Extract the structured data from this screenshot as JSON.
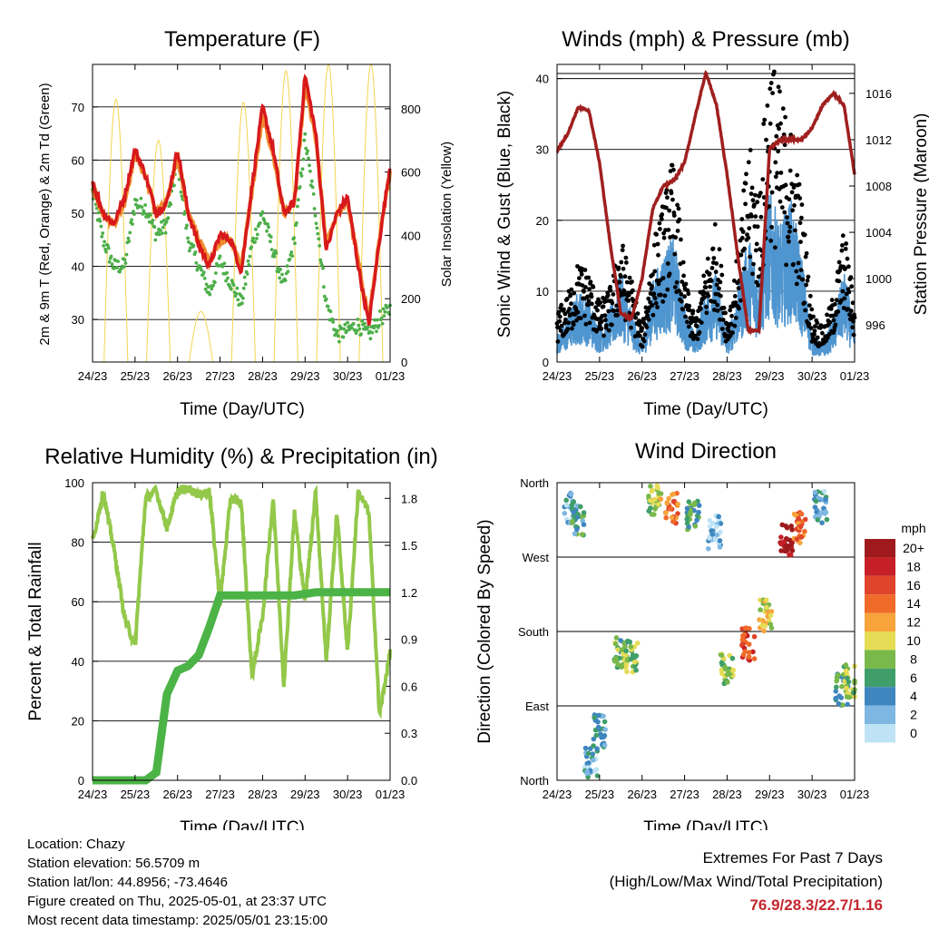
{
  "colors": {
    "red": "#d7191c",
    "orange": "#f08c2e",
    "green": "#4daf4a",
    "yellow": "#f2d44e",
    "black": "#000000",
    "blue": "#4f95cf",
    "maroon": "#a01f1f",
    "rh": "#93c84a",
    "rain": "#4cb347",
    "extremes": "#c4262e"
  },
  "x_ticks": [
    "24/23",
    "25/23",
    "26/23",
    "27/23",
    "28/23",
    "29/23",
    "30/23",
    "01/23"
  ],
  "x_label": "Time (Day/UTC)",
  "temperature": {
    "title": "Temperature (F)",
    "ylabel": "2m & 9m T (Red, Orange) & 2m Td (Green)",
    "y2label": "Solar Insolation (Yellow)",
    "yticks": [
      30,
      40,
      50,
      60,
      70
    ],
    "y2ticks": [
      0,
      200,
      400,
      600,
      800
    ],
    "ylim": [
      22,
      78
    ],
    "y2lim": [
      0,
      940
    ]
  },
  "winds": {
    "title": "Winds (mph) & Pressure (mb)",
    "ylabel": "Sonic Wind & Gust (Blue, Black)",
    "y2label": "Station Pressure (Maroon)",
    "yticks": [
      0,
      10,
      20,
      30,
      40
    ],
    "y2ticks": [
      996,
      1000,
      1004,
      1008,
      1012,
      1016
    ],
    "ylim": [
      0,
      42
    ],
    "y2lim": [
      992.8,
      1018.5
    ]
  },
  "humidity": {
    "title": "Relative Humidity (%) & Precipitation (in)",
    "ylabel": "Percent & Total Rainfall",
    "yticks": [
      0,
      20,
      40,
      60,
      80,
      100
    ],
    "y2ticks": [
      "0.0",
      "0.3",
      "0.6",
      "0.9",
      "1.2",
      "1.5",
      "1.8"
    ],
    "ylim": [
      0,
      100
    ],
    "y2lim": [
      0,
      1.9
    ]
  },
  "direction": {
    "title": "Wind Direction",
    "ylabel": "Direction (Colored By Speed)",
    "yticks": [
      "North",
      "East",
      "South",
      "West",
      "North"
    ],
    "legend_title": "mph",
    "legend": [
      {
        "label": "20+",
        "color": "#9e1a1c"
      },
      {
        "label": "18",
        "color": "#c62026"
      },
      {
        "label": "16",
        "color": "#e0442a"
      },
      {
        "label": "14",
        "color": "#f06a2a"
      },
      {
        "label": "12",
        "color": "#f7a43c"
      },
      {
        "label": "10",
        "color": "#e6dc56"
      },
      {
        "label": "8",
        "color": "#79b84a"
      },
      {
        "label": "6",
        "color": "#3f9e6a"
      },
      {
        "label": "4",
        "color": "#3f86bf"
      },
      {
        "label": "2",
        "color": "#7db7e2"
      },
      {
        "label": "0",
        "color": "#bfe3f5"
      }
    ]
  },
  "chart_data": [
    {
      "type": "line",
      "title": "Temperature (F)",
      "xlabel": "Time (Day/UTC)",
      "ylabel": "2m & 9m T (Red, Orange) & 2m Td (Green)",
      "y2label": "Solar Insolation (Yellow)",
      "x": [
        0,
        0.25,
        0.5,
        0.75,
        1,
        1.25,
        1.5,
        1.75,
        2,
        2.25,
        2.5,
        2.75,
        3,
        3.25,
        3.5,
        3.75,
        4,
        4.25,
        4.5,
        4.75,
        5,
        5.25,
        5.5,
        5.75,
        6,
        6.25,
        6.5,
        6.75,
        7
      ],
      "series": [
        {
          "name": "2m T",
          "values": [
            56,
            50,
            48,
            53,
            62,
            57,
            50,
            52,
            62,
            50,
            44,
            40,
            46,
            45,
            39,
            55,
            70,
            62,
            50,
            52,
            76,
            65,
            43,
            50,
            53,
            40,
            29,
            45,
            59
          ]
        },
        {
          "name": "9m T",
          "values": [
            55,
            50,
            48,
            52,
            61,
            57,
            50,
            52,
            61,
            50,
            45,
            41,
            45,
            45,
            40,
            54,
            68,
            61,
            50,
            52,
            74,
            64,
            44,
            50,
            52,
            41,
            30,
            45,
            58
          ]
        },
        {
          "name": "2m Td",
          "values": [
            54,
            45,
            40,
            40,
            52,
            51,
            46,
            48,
            60,
            45,
            40,
            35,
            41,
            37,
            33,
            44,
            50,
            43,
            36,
            45,
            64,
            50,
            33,
            27,
            28,
            29,
            27,
            30,
            32
          ]
        }
      ],
      "solar_insolation": {
        "peaks_day": [
          0.55,
          1.55,
          2.55,
          3.55,
          4.55,
          5.55,
          6.55
        ],
        "peak_values": [
          830,
          700,
          160,
          820,
          920,
          940,
          940
        ]
      },
      "ylim": [
        22,
        78
      ],
      "y2lim": [
        0,
        940
      ]
    },
    {
      "type": "line",
      "title": "Winds (mph) & Pressure (mb)",
      "xlabel": "Time (Day/UTC)",
      "ylabel": "Sonic Wind & Gust (Blue, Black)",
      "y2label": "Station Pressure (Maroon)",
      "x": [
        0,
        0.25,
        0.5,
        0.75,
        1,
        1.25,
        1.5,
        1.75,
        2,
        2.25,
        2.5,
        2.75,
        3,
        3.25,
        3.5,
        3.75,
        4,
        4.25,
        4.5,
        4.75,
        5,
        5.25,
        5.5,
        5.75,
        6,
        6.25,
        6.5,
        6.75,
        7
      ],
      "series": [
        {
          "name": "Sonic Wind",
          "values": [
            3,
            5,
            8,
            7,
            4,
            6,
            10,
            6,
            2,
            9,
            12,
            14,
            6,
            3,
            8,
            10,
            3,
            8,
            14,
            10,
            19,
            15,
            18,
            12,
            3,
            2,
            5,
            10,
            4
          ]
        },
        {
          "name": "Gust",
          "values": [
            6,
            8,
            12,
            11,
            7,
            9,
            15,
            10,
            4,
            14,
            19,
            25,
            10,
            5,
            12,
            17,
            5,
            13,
            26,
            21,
            38,
            32,
            28,
            20,
            6,
            4,
            8,
            16,
            7
          ]
        },
        {
          "name": "Station Pressure",
          "values": [
            1011,
            1012.5,
            1014.8,
            1014.5,
            1010,
            1003,
            997,
            996.5,
            1000,
            1006,
            1008,
            1008.5,
            1010,
            1014,
            1017.8,
            1015,
            1009,
            1002,
            995.5,
            995.5,
            1011.2,
            1012,
            1012,
            1012,
            1013,
            1015,
            1016,
            1015,
            1009
          ]
        }
      ],
      "ylim": [
        0,
        42
      ],
      "y2lim": [
        992.8,
        1018.5
      ]
    },
    {
      "type": "line",
      "title": "Relative Humidity (%) & Precipitation (in)",
      "xlabel": "Time (Day/UTC)",
      "ylabel": "Percent & Total Rainfall",
      "x": [
        0,
        0.25,
        0.5,
        0.75,
        1,
        1.25,
        1.5,
        1.75,
        2,
        2.25,
        2.5,
        2.75,
        3,
        3.25,
        3.5,
        3.75,
        4,
        4.25,
        4.5,
        4.75,
        5,
        5.25,
        5.5,
        5.75,
        6,
        6.25,
        6.5,
        6.75,
        7
      ],
      "series": [
        {
          "name": "Relative Humidity",
          "values": [
            80,
            97,
            78,
            55,
            45,
            95,
            97,
            85,
            97,
            98,
            96,
            97,
            60,
            95,
            93,
            35,
            55,
            95,
            32,
            90,
            60,
            97,
            40,
            90,
            43,
            97,
            90,
            22,
            43
          ]
        },
        {
          "name": "Total Rainfall",
          "values": [
            0,
            0,
            0,
            0,
            0,
            0,
            0.05,
            0.55,
            0.7,
            0.73,
            0.8,
            0.98,
            1.18,
            1.18,
            1.18,
            1.18,
            1.18,
            1.18,
            1.18,
            1.18,
            1.19,
            1.2,
            1.2,
            1.2,
            1.2,
            1.2,
            1.2,
            1.2,
            1.2
          ]
        }
      ],
      "ylim": [
        0,
        100
      ],
      "y2lim": [
        0,
        1.9
      ]
    },
    {
      "type": "scatter",
      "title": "Wind Direction",
      "xlabel": "Time (Day/UTC)",
      "ylabel": "Direction (Colored By Speed)",
      "y_ticks": [
        "North",
        "East",
        "South",
        "West",
        "North"
      ],
      "points": [
        {
          "day": 0.3,
          "dir_deg": 330,
          "mph": 3
        },
        {
          "day": 0.5,
          "dir_deg": 315,
          "mph": 5
        },
        {
          "day": 0.8,
          "dir_deg": 20,
          "mph": 3
        },
        {
          "day": 1.0,
          "dir_deg": 60,
          "mph": 4
        },
        {
          "day": 1.5,
          "dir_deg": 155,
          "mph": 7
        },
        {
          "day": 1.75,
          "dir_deg": 150,
          "mph": 8
        },
        {
          "day": 2.3,
          "dir_deg": 340,
          "mph": 9
        },
        {
          "day": 2.7,
          "dir_deg": 330,
          "mph": 14
        },
        {
          "day": 3.2,
          "dir_deg": 320,
          "mph": 6
        },
        {
          "day": 3.7,
          "dir_deg": 300,
          "mph": 2
        },
        {
          "day": 4.0,
          "dir_deg": 135,
          "mph": 8
        },
        {
          "day": 4.5,
          "dir_deg": 165,
          "mph": 16
        },
        {
          "day": 4.9,
          "dir_deg": 200,
          "mph": 10
        },
        {
          "day": 5.4,
          "dir_deg": 290,
          "mph": 20
        },
        {
          "day": 5.7,
          "dir_deg": 305,
          "mph": 14
        },
        {
          "day": 6.2,
          "dir_deg": 330,
          "mph": 3
        },
        {
          "day": 6.7,
          "dir_deg": 110,
          "mph": 6
        },
        {
          "day": 6.9,
          "dir_deg": 120,
          "mph": 8
        }
      ]
    }
  ],
  "info": {
    "location": "Location: Chazy",
    "elevation": "Station elevation: 56.5709 m",
    "latlon": "Station lat/lon: 44.8956; -73.4646",
    "created": "Figure created on Thu, 2025-05-01, at 23:37 UTC",
    "recent": "Most recent data timestamp: 2025/05/01 23:15:00"
  },
  "extremes": {
    "title": "Extremes For Past 7 Days",
    "subtitle": "(High/Low/Max Wind/Total Precipitation)",
    "values": "76.9/28.3/22.7/1.16"
  }
}
